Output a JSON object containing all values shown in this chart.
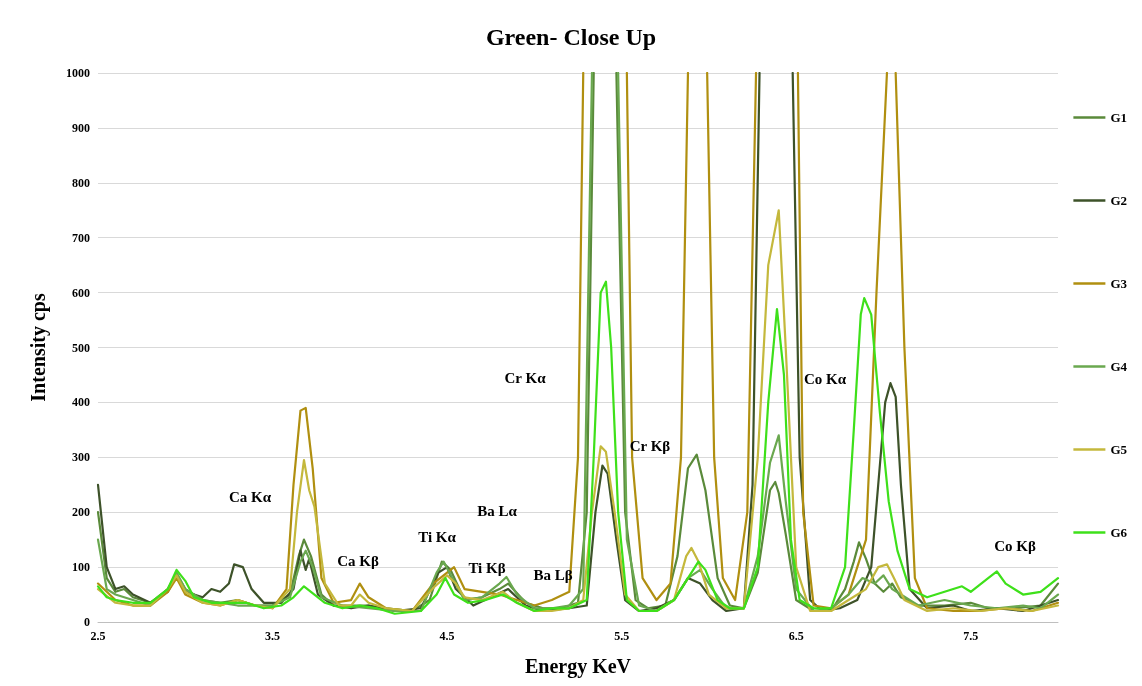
{
  "chart_data": {
    "type": "line",
    "title": "Green- Close Up",
    "xlabel": "Energy KeV",
    "ylabel": "Intensity cps",
    "xlim": [
      2.5,
      8.0
    ],
    "xticks": [
      2.5,
      3.5,
      4.5,
      5.5,
      6.5,
      7.5
    ],
    "ylim": [
      0,
      1000
    ],
    "yticks": [
      0,
      100,
      200,
      300,
      400,
      500,
      600,
      700,
      800,
      900,
      1000
    ],
    "grid": "y",
    "legend": "right",
    "marker": "none",
    "line_style": "solid",
    "annotations": [
      "Ca Kα",
      "Ca Kβ",
      "Ti Kα",
      "Ti Kβ",
      "Ba Lα",
      "Ba Lβ",
      "Cr Kα",
      "Cr Kβ",
      "Co Kα",
      "Co Kβ"
    ],
    "series": [
      {
        "name": "G1",
        "color": "#5a8a3a",
        "x": [
          2.5,
          2.55,
          2.6,
          2.65,
          2.7,
          2.8,
          2.9,
          2.95,
          3.0,
          3.1,
          3.2,
          3.3,
          3.4,
          3.5,
          3.6,
          3.65,
          3.68,
          3.72,
          3.78,
          3.85,
          3.95,
          4.05,
          4.15,
          4.3,
          4.4,
          4.47,
          4.52,
          4.6,
          4.7,
          4.8,
          4.85,
          4.95,
          5.05,
          5.15,
          5.25,
          5.3,
          5.34,
          5.4,
          5.47,
          5.52,
          5.58,
          5.65,
          5.75,
          5.82,
          5.88,
          5.93,
          5.98,
          6.05,
          6.12,
          6.2,
          6.28,
          6.35,
          6.38,
          6.4,
          6.44,
          6.5,
          6.6,
          6.7,
          6.78,
          6.83,
          6.86,
          6.9,
          6.95,
          7.0,
          7.05,
          7.1,
          7.2,
          7.35,
          7.5,
          7.6,
          7.75,
          7.9,
          8.0
        ],
        "values": [
          200,
          80,
          55,
          60,
          45,
          35,
          60,
          88,
          60,
          40,
          35,
          40,
          30,
          30,
          50,
          120,
          150,
          120,
          50,
          30,
          30,
          30,
          25,
          20,
          40,
          110,
          95,
          40,
          45,
          60,
          70,
          35,
          25,
          25,
          35,
          200,
          1000,
          null,
          1000,
          200,
          40,
          25,
          30,
          120,
          280,
          305,
          240,
          80,
          30,
          25,
          90,
          240,
          255,
          235,
          160,
          40,
          20,
          20,
          60,
          110,
          145,
          115,
          70,
          55,
          70,
          45,
          30,
          30,
          35,
          25,
          25,
          30,
          70
        ]
      },
      {
        "name": "G2",
        "color": "#3d5229",
        "x": [
          2.5,
          2.55,
          2.6,
          2.65,
          2.7,
          2.8,
          2.9,
          2.95,
          3.0,
          3.1,
          3.15,
          3.2,
          3.25,
          3.28,
          3.33,
          3.38,
          3.45,
          3.55,
          3.62,
          3.66,
          3.69,
          3.71,
          3.76,
          3.85,
          3.95,
          4.05,
          4.2,
          4.35,
          4.45,
          4.5,
          4.55,
          4.65,
          4.75,
          4.85,
          4.95,
          5.05,
          5.2,
          5.3,
          5.35,
          5.39,
          5.42,
          5.47,
          5.52,
          5.6,
          5.7,
          5.8,
          5.88,
          5.95,
          6.02,
          6.1,
          6.2,
          6.25,
          6.29,
          6.4,
          6.48,
          6.52,
          6.58,
          6.65,
          6.75,
          6.85,
          6.93,
          6.97,
          7.01,
          7.04,
          7.07,
          7.1,
          7.15,
          7.25,
          7.4,
          7.5,
          7.65,
          7.8,
          7.9,
          8.0
        ],
        "values": [
          250,
          100,
          60,
          65,
          50,
          35,
          55,
          85,
          55,
          45,
          60,
          55,
          70,
          105,
          100,
          60,
          35,
          35,
          60,
          130,
          95,
          115,
          50,
          30,
          25,
          30,
          20,
          25,
          90,
          100,
          60,
          30,
          45,
          60,
          30,
          20,
          25,
          30,
          200,
          285,
          270,
          150,
          40,
          20,
          25,
          40,
          80,
          70,
          40,
          20,
          25,
          250,
          1000,
          null,
          1000,
          300,
          40,
          20,
          25,
          40,
          100,
          250,
          400,
          435,
          410,
          250,
          60,
          25,
          30,
          20,
          25,
          20,
          30,
          40
        ]
      },
      {
        "name": "G3",
        "color": "#b08f10",
        "x": [
          2.5,
          2.6,
          2.7,
          2.8,
          2.9,
          2.95,
          3.0,
          3.1,
          3.2,
          3.3,
          3.4,
          3.5,
          3.58,
          3.62,
          3.66,
          3.69,
          3.73,
          3.78,
          3.85,
          3.95,
          4.0,
          4.05,
          4.15,
          4.3,
          4.42,
          4.5,
          4.54,
          4.6,
          4.7,
          4.8,
          4.9,
          5.0,
          5.1,
          5.2,
          5.25,
          5.28,
          5.4,
          5.53,
          5.56,
          5.62,
          5.7,
          5.78,
          5.84,
          5.88,
          5.93,
          5.99,
          6.03,
          6.08,
          6.15,
          6.22,
          6.27,
          6.4,
          6.51,
          6.54,
          6.6,
          6.7,
          6.8,
          6.9,
          6.96,
          7.02,
          7.05,
          7.07,
          7.12,
          7.18,
          7.25,
          7.4,
          7.55,
          7.7,
          7.85,
          8.0
        ],
        "values": [
          70,
          40,
          30,
          30,
          55,
          80,
          50,
          35,
          30,
          40,
          30,
          25,
          60,
          250,
          385,
          390,
          280,
          80,
          35,
          40,
          70,
          45,
          25,
          20,
          70,
          90,
          100,
          60,
          55,
          50,
          40,
          30,
          40,
          55,
          300,
          1000,
          null,
          1000,
          300,
          80,
          40,
          70,
          300,
          1000,
          null,
          1000,
          300,
          80,
          40,
          200,
          1000,
          null,
          1000,
          200,
          30,
          25,
          50,
          150,
          600,
          1000,
          null,
          1000,
          500,
          80,
          25,
          20,
          20,
          25,
          20,
          35
        ]
      },
      {
        "name": "G4",
        "color": "#6aa84f",
        "x": [
          2.5,
          2.55,
          2.6,
          2.7,
          2.8,
          2.9,
          2.95,
          3.0,
          3.1,
          3.2,
          3.3,
          3.4,
          3.5,
          3.6,
          3.66,
          3.69,
          3.73,
          3.78,
          3.9,
          4.05,
          4.2,
          4.35,
          4.44,
          4.48,
          4.53,
          4.6,
          4.7,
          4.8,
          4.84,
          4.9,
          5.0,
          5.1,
          5.2,
          5.28,
          5.33,
          5.4,
          5.48,
          5.53,
          5.6,
          5.7,
          5.8,
          5.88,
          5.95,
          6.02,
          6.1,
          6.2,
          6.28,
          6.35,
          6.4,
          6.44,
          6.5,
          6.6,
          6.7,
          6.8,
          6.88,
          6.95,
          7.0,
          7.05,
          7.1,
          7.2,
          7.35,
          7.5,
          7.65,
          7.8,
          7.9,
          8.0
        ],
        "values": [
          150,
          60,
          50,
          40,
          30,
          60,
          90,
          60,
          40,
          35,
          30,
          30,
          30,
          45,
          110,
          130,
          100,
          45,
          30,
          25,
          20,
          20,
          90,
          110,
          80,
          40,
          45,
          70,
          82,
          50,
          25,
          25,
          30,
          60,
          1000,
          null,
          1000,
          150,
          30,
          20,
          40,
          80,
          95,
          60,
          25,
          25,
          120,
          290,
          340,
          220,
          60,
          20,
          25,
          50,
          80,
          70,
          85,
          60,
          50,
          30,
          40,
          30,
          25,
          30,
          25,
          50
        ]
      },
      {
        "name": "G5",
        "color": "#c4b83c",
        "x": [
          2.5,
          2.6,
          2.7,
          2.8,
          2.9,
          2.95,
          3.0,
          3.1,
          3.2,
          3.3,
          3.4,
          3.5,
          3.6,
          3.64,
          3.68,
          3.71,
          3.74,
          3.8,
          3.88,
          3.95,
          4.0,
          4.05,
          4.15,
          4.3,
          4.43,
          4.5,
          4.55,
          4.6,
          4.7,
          4.82,
          4.9,
          5.0,
          5.1,
          5.2,
          5.28,
          5.33,
          5.38,
          5.41,
          5.46,
          5.52,
          5.6,
          5.7,
          5.8,
          5.87,
          5.9,
          5.94,
          6.0,
          6.1,
          6.2,
          6.28,
          6.34,
          6.4,
          6.44,
          6.5,
          6.58,
          6.7,
          6.8,
          6.9,
          6.97,
          7.02,
          7.06,
          7.12,
          7.25,
          7.4,
          7.55,
          7.7,
          7.85,
          8.0
        ],
        "values": [
          60,
          35,
          30,
          30,
          60,
          85,
          55,
          35,
          30,
          40,
          30,
          25,
          60,
          200,
          295,
          240,
          210,
          70,
          30,
          30,
          50,
          35,
          25,
          20,
          65,
          85,
          70,
          45,
          40,
          55,
          35,
          20,
          20,
          25,
          40,
          200,
          320,
          310,
          200,
          50,
          20,
          20,
          40,
          120,
          135,
          110,
          50,
          25,
          25,
          300,
          650,
          750,
          500,
          100,
          20,
          20,
          40,
          60,
          100,
          105,
          80,
          40,
          20,
          25,
          20,
          25,
          20,
          30
        ]
      },
      {
        "name": "G6",
        "color": "#3ee01a",
        "x": [
          2.5,
          2.55,
          2.6,
          2.7,
          2.8,
          2.9,
          2.95,
          3.0,
          3.05,
          3.15,
          3.25,
          3.35,
          3.45,
          3.55,
          3.62,
          3.68,
          3.74,
          3.8,
          3.9,
          4.0,
          4.1,
          4.2,
          4.35,
          4.44,
          4.49,
          4.54,
          4.62,
          4.72,
          4.82,
          4.9,
          5.0,
          5.1,
          5.2,
          5.3,
          5.34,
          5.38,
          5.41,
          5.44,
          5.48,
          5.53,
          5.6,
          5.7,
          5.8,
          5.88,
          5.94,
          5.98,
          6.05,
          6.12,
          6.2,
          6.28,
          6.34,
          6.39,
          6.43,
          6.47,
          6.52,
          6.6,
          6.7,
          6.78,
          6.83,
          6.87,
          6.89,
          6.93,
          6.98,
          7.03,
          7.08,
          7.15,
          7.25,
          7.35,
          7.45,
          7.5,
          7.6,
          7.65,
          7.7,
          7.8,
          7.9,
          8.0
        ],
        "values": [
          65,
          45,
          40,
          35,
          35,
          60,
          95,
          75,
          45,
          35,
          35,
          35,
          25,
          30,
          45,
          65,
          50,
          35,
          25,
          30,
          25,
          15,
          20,
          50,
          80,
          50,
          35,
          40,
          50,
          35,
          20,
          25,
          25,
          40,
          300,
          600,
          620,
          500,
          200,
          40,
          20,
          20,
          40,
          80,
          110,
          95,
          40,
          25,
          25,
          100,
          400,
          570,
          450,
          150,
          40,
          25,
          25,
          100,
          350,
          560,
          590,
          560,
          380,
          220,
          130,
          60,
          45,
          55,
          65,
          55,
          80,
          92,
          70,
          50,
          55,
          80
        ]
      }
    ]
  }
}
